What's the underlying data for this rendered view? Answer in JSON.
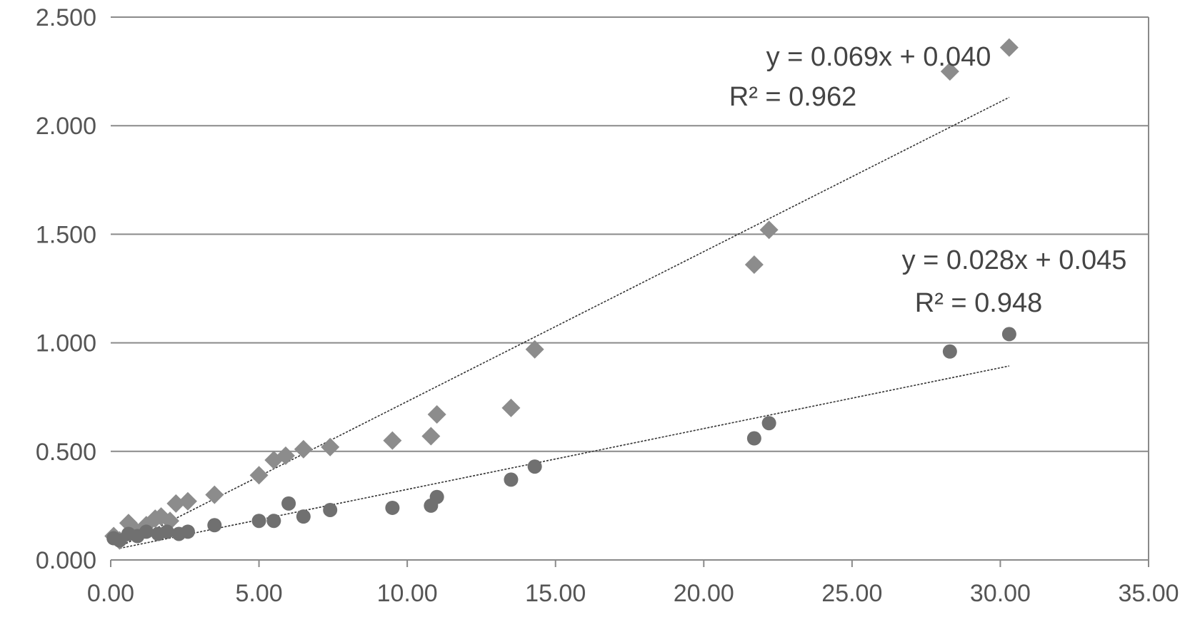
{
  "chart_data": {
    "type": "scatter",
    "title": "",
    "xlabel": "",
    "ylabel": "",
    "xlim": [
      0,
      35
    ],
    "ylim": [
      0,
      2.5
    ],
    "grid": "horizontal",
    "x_ticks": [
      "0.00",
      "5.00",
      "10.00",
      "15.00",
      "20.00",
      "25.00",
      "30.00",
      "35.00"
    ],
    "y_ticks": [
      "0.000",
      "0.500",
      "1.000",
      "1.500",
      "2.000",
      "2.500"
    ],
    "colors": {
      "diamond": "#8c8c8c",
      "circle": "#707070",
      "trend": "#333333"
    },
    "series": [
      {
        "marker": "diamond",
        "points": [
          [
            0.1,
            0.11
          ],
          [
            0.3,
            0.09
          ],
          [
            0.6,
            0.17
          ],
          [
            0.8,
            0.14
          ],
          [
            1.2,
            0.16
          ],
          [
            1.5,
            0.19
          ],
          [
            1.7,
            0.2
          ],
          [
            2.0,
            0.18
          ],
          [
            2.2,
            0.26
          ],
          [
            2.6,
            0.27
          ],
          [
            3.5,
            0.3
          ],
          [
            5.0,
            0.39
          ],
          [
            5.5,
            0.46
          ],
          [
            5.9,
            0.48
          ],
          [
            6.5,
            0.51
          ],
          [
            7.4,
            0.52
          ],
          [
            9.5,
            0.55
          ],
          [
            10.8,
            0.57
          ],
          [
            11.0,
            0.67
          ],
          [
            13.5,
            0.7
          ],
          [
            14.3,
            0.97
          ],
          [
            21.7,
            1.36
          ],
          [
            22.2,
            1.52
          ],
          [
            28.3,
            2.25
          ],
          [
            30.3,
            2.36
          ]
        ],
        "trendline": {
          "x0": 0.3,
          "x1": 30.3
        },
        "equation": "y = 0.069x + 0.040",
        "r2": "R² = 0.962"
      },
      {
        "marker": "circle",
        "points": [
          [
            0.1,
            0.1
          ],
          [
            0.3,
            0.09
          ],
          [
            0.6,
            0.12
          ],
          [
            0.9,
            0.11
          ],
          [
            1.2,
            0.13
          ],
          [
            1.6,
            0.12
          ],
          [
            1.9,
            0.13
          ],
          [
            2.3,
            0.12
          ],
          [
            2.6,
            0.13
          ],
          [
            3.5,
            0.16
          ],
          [
            5.0,
            0.18
          ],
          [
            5.5,
            0.18
          ],
          [
            6.0,
            0.26
          ],
          [
            6.5,
            0.2
          ],
          [
            7.4,
            0.23
          ],
          [
            9.5,
            0.24
          ],
          [
            10.8,
            0.25
          ],
          [
            11.0,
            0.29
          ],
          [
            13.5,
            0.37
          ],
          [
            14.3,
            0.43
          ],
          [
            21.7,
            0.56
          ],
          [
            22.2,
            0.63
          ],
          [
            28.3,
            0.96
          ],
          [
            30.3,
            1.04
          ]
        ],
        "trendline": {
          "x0": 0.3,
          "x1": 30.3
        },
        "equation": "y = 0.028x + 0.045",
        "r2": "R² = 0.948"
      }
    ]
  }
}
